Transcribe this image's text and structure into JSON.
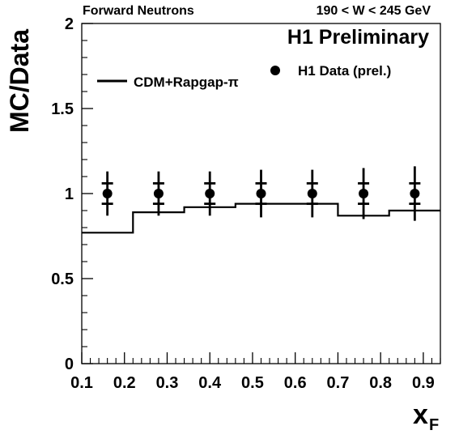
{
  "chart_data": {
    "type": "scatter",
    "header_left": "Forward Neutrons",
    "header_right": "190 < W < 245 GeV",
    "annotation": "H1 Preliminary",
    "xlabel": "x",
    "xlabel_sub": "F",
    "ylabel": "MC/Data",
    "xlim": [
      0.1,
      0.94
    ],
    "ylim": [
      0,
      2
    ],
    "x_ticks": [
      "0.1",
      "0.2",
      "0.3",
      "0.4",
      "0.5",
      "0.6",
      "0.7",
      "0.8",
      "0.9"
    ],
    "y_ticks": [
      "0",
      "0.5",
      "1",
      "1.5",
      "2"
    ],
    "legend": {
      "position": "top",
      "model": "CDM+Rapgap-π",
      "data": "H1 Data (prel.)"
    },
    "data_points": [
      {
        "x": 0.16,
        "y": 1.0,
        "stat": 0.06,
        "tot": 0.13
      },
      {
        "x": 0.28,
        "y": 1.0,
        "stat": 0.06,
        "tot": 0.13
      },
      {
        "x": 0.4,
        "y": 1.0,
        "stat": 0.06,
        "tot": 0.13
      },
      {
        "x": 0.52,
        "y": 1.0,
        "stat": 0.06,
        "tot": 0.14
      },
      {
        "x": 0.64,
        "y": 1.0,
        "stat": 0.06,
        "tot": 0.14
      },
      {
        "x": 0.76,
        "y": 1.0,
        "stat": 0.06,
        "tot": 0.15
      },
      {
        "x": 0.88,
        "y": 1.0,
        "stat": 0.06,
        "tot": 0.16
      }
    ],
    "model_histogram": {
      "edges": [
        0.1,
        0.22,
        0.34,
        0.46,
        0.58,
        0.7,
        0.82,
        0.94
      ],
      "values": [
        0.77,
        0.89,
        0.92,
        0.94,
        0.94,
        0.87,
        0.9
      ]
    }
  }
}
